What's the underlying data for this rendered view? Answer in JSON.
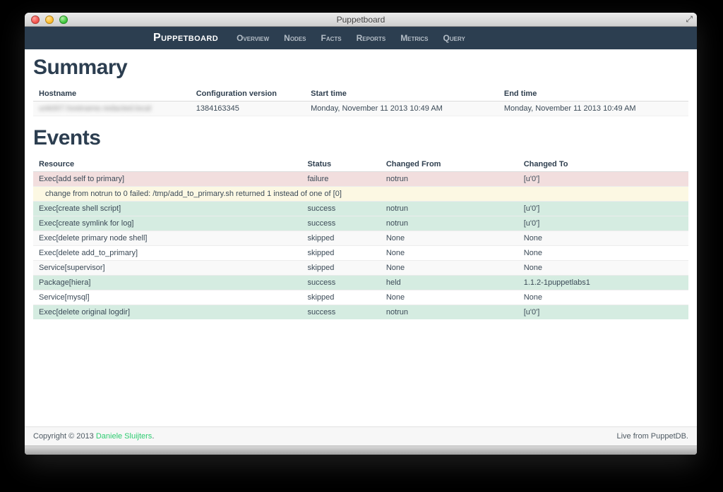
{
  "window": {
    "title": "Puppetboard"
  },
  "navbar": {
    "brand": "Puppetboard",
    "items": [
      {
        "label": "Overview"
      },
      {
        "label": "Nodes"
      },
      {
        "label": "Facts"
      },
      {
        "label": "Reports"
      },
      {
        "label": "Metrics"
      },
      {
        "label": "Query"
      }
    ]
  },
  "summary": {
    "heading": "Summary",
    "columns": [
      "Hostname",
      "Configuration version",
      "Start time",
      "End time"
    ],
    "row": {
      "hostname_redacted_text": "unk007.hostname.redacted.local",
      "configuration_version": "1384163345",
      "start_time": "Monday, November 11 2013 10:49 AM",
      "end_time": "Monday, November 11 2013 10:49 AM"
    }
  },
  "events": {
    "heading": "Events",
    "columns": [
      "Resource",
      "Status",
      "Changed From",
      "Changed To"
    ],
    "rows": [
      {
        "resource": "Exec[add self to primary]",
        "status": "failure",
        "changed_from": "notrun",
        "changed_to": "[u'0']",
        "type": "failure"
      },
      {
        "message": "change from notrun to 0 failed: /tmp/add_to_primary.sh returned 1 instead of one of [0]",
        "type": "message"
      },
      {
        "resource": "Exec[create shell script]",
        "status": "success",
        "changed_from": "notrun",
        "changed_to": "[u'0']",
        "type": "success"
      },
      {
        "resource": "Exec[create symlink for log]",
        "status": "success",
        "changed_from": "notrun",
        "changed_to": "[u'0']",
        "type": "success"
      },
      {
        "resource": "Exec[delete primary node shell]",
        "status": "skipped",
        "changed_from": "None",
        "changed_to": "None",
        "type": "striped"
      },
      {
        "resource": "Exec[delete add_to_primary]",
        "status": "skipped",
        "changed_from": "None",
        "changed_to": "None",
        "type": "plain"
      },
      {
        "resource": "Service[supervisor]",
        "status": "skipped",
        "changed_from": "None",
        "changed_to": "None",
        "type": "striped"
      },
      {
        "resource": "Package[hiera]",
        "status": "success",
        "changed_from": "held",
        "changed_to": "1.1.2-1puppetlabs1",
        "type": "success"
      },
      {
        "resource": "Service[mysql]",
        "status": "skipped",
        "changed_from": "None",
        "changed_to": "None",
        "type": "plain"
      },
      {
        "resource": "Exec[delete original logdir]",
        "status": "success",
        "changed_from": "notrun",
        "changed_to": "[u'0']",
        "type": "success"
      }
    ]
  },
  "footer": {
    "copyright_prefix": "Copyright © 2013 ",
    "copyright_link": "Daniele Sluijters",
    "copyright_suffix": ".",
    "right_text": "Live from PuppetDB."
  },
  "colors": {
    "navbar_bg": "#2c3e50",
    "heading": "#2c3e50",
    "row_failure_bg": "#f2dede",
    "row_message_bg": "#fcf8e3",
    "row_success_bg": "#d5ece1",
    "row_striped_bg": "#f9f9f9",
    "link_green": "#2ecc71"
  }
}
